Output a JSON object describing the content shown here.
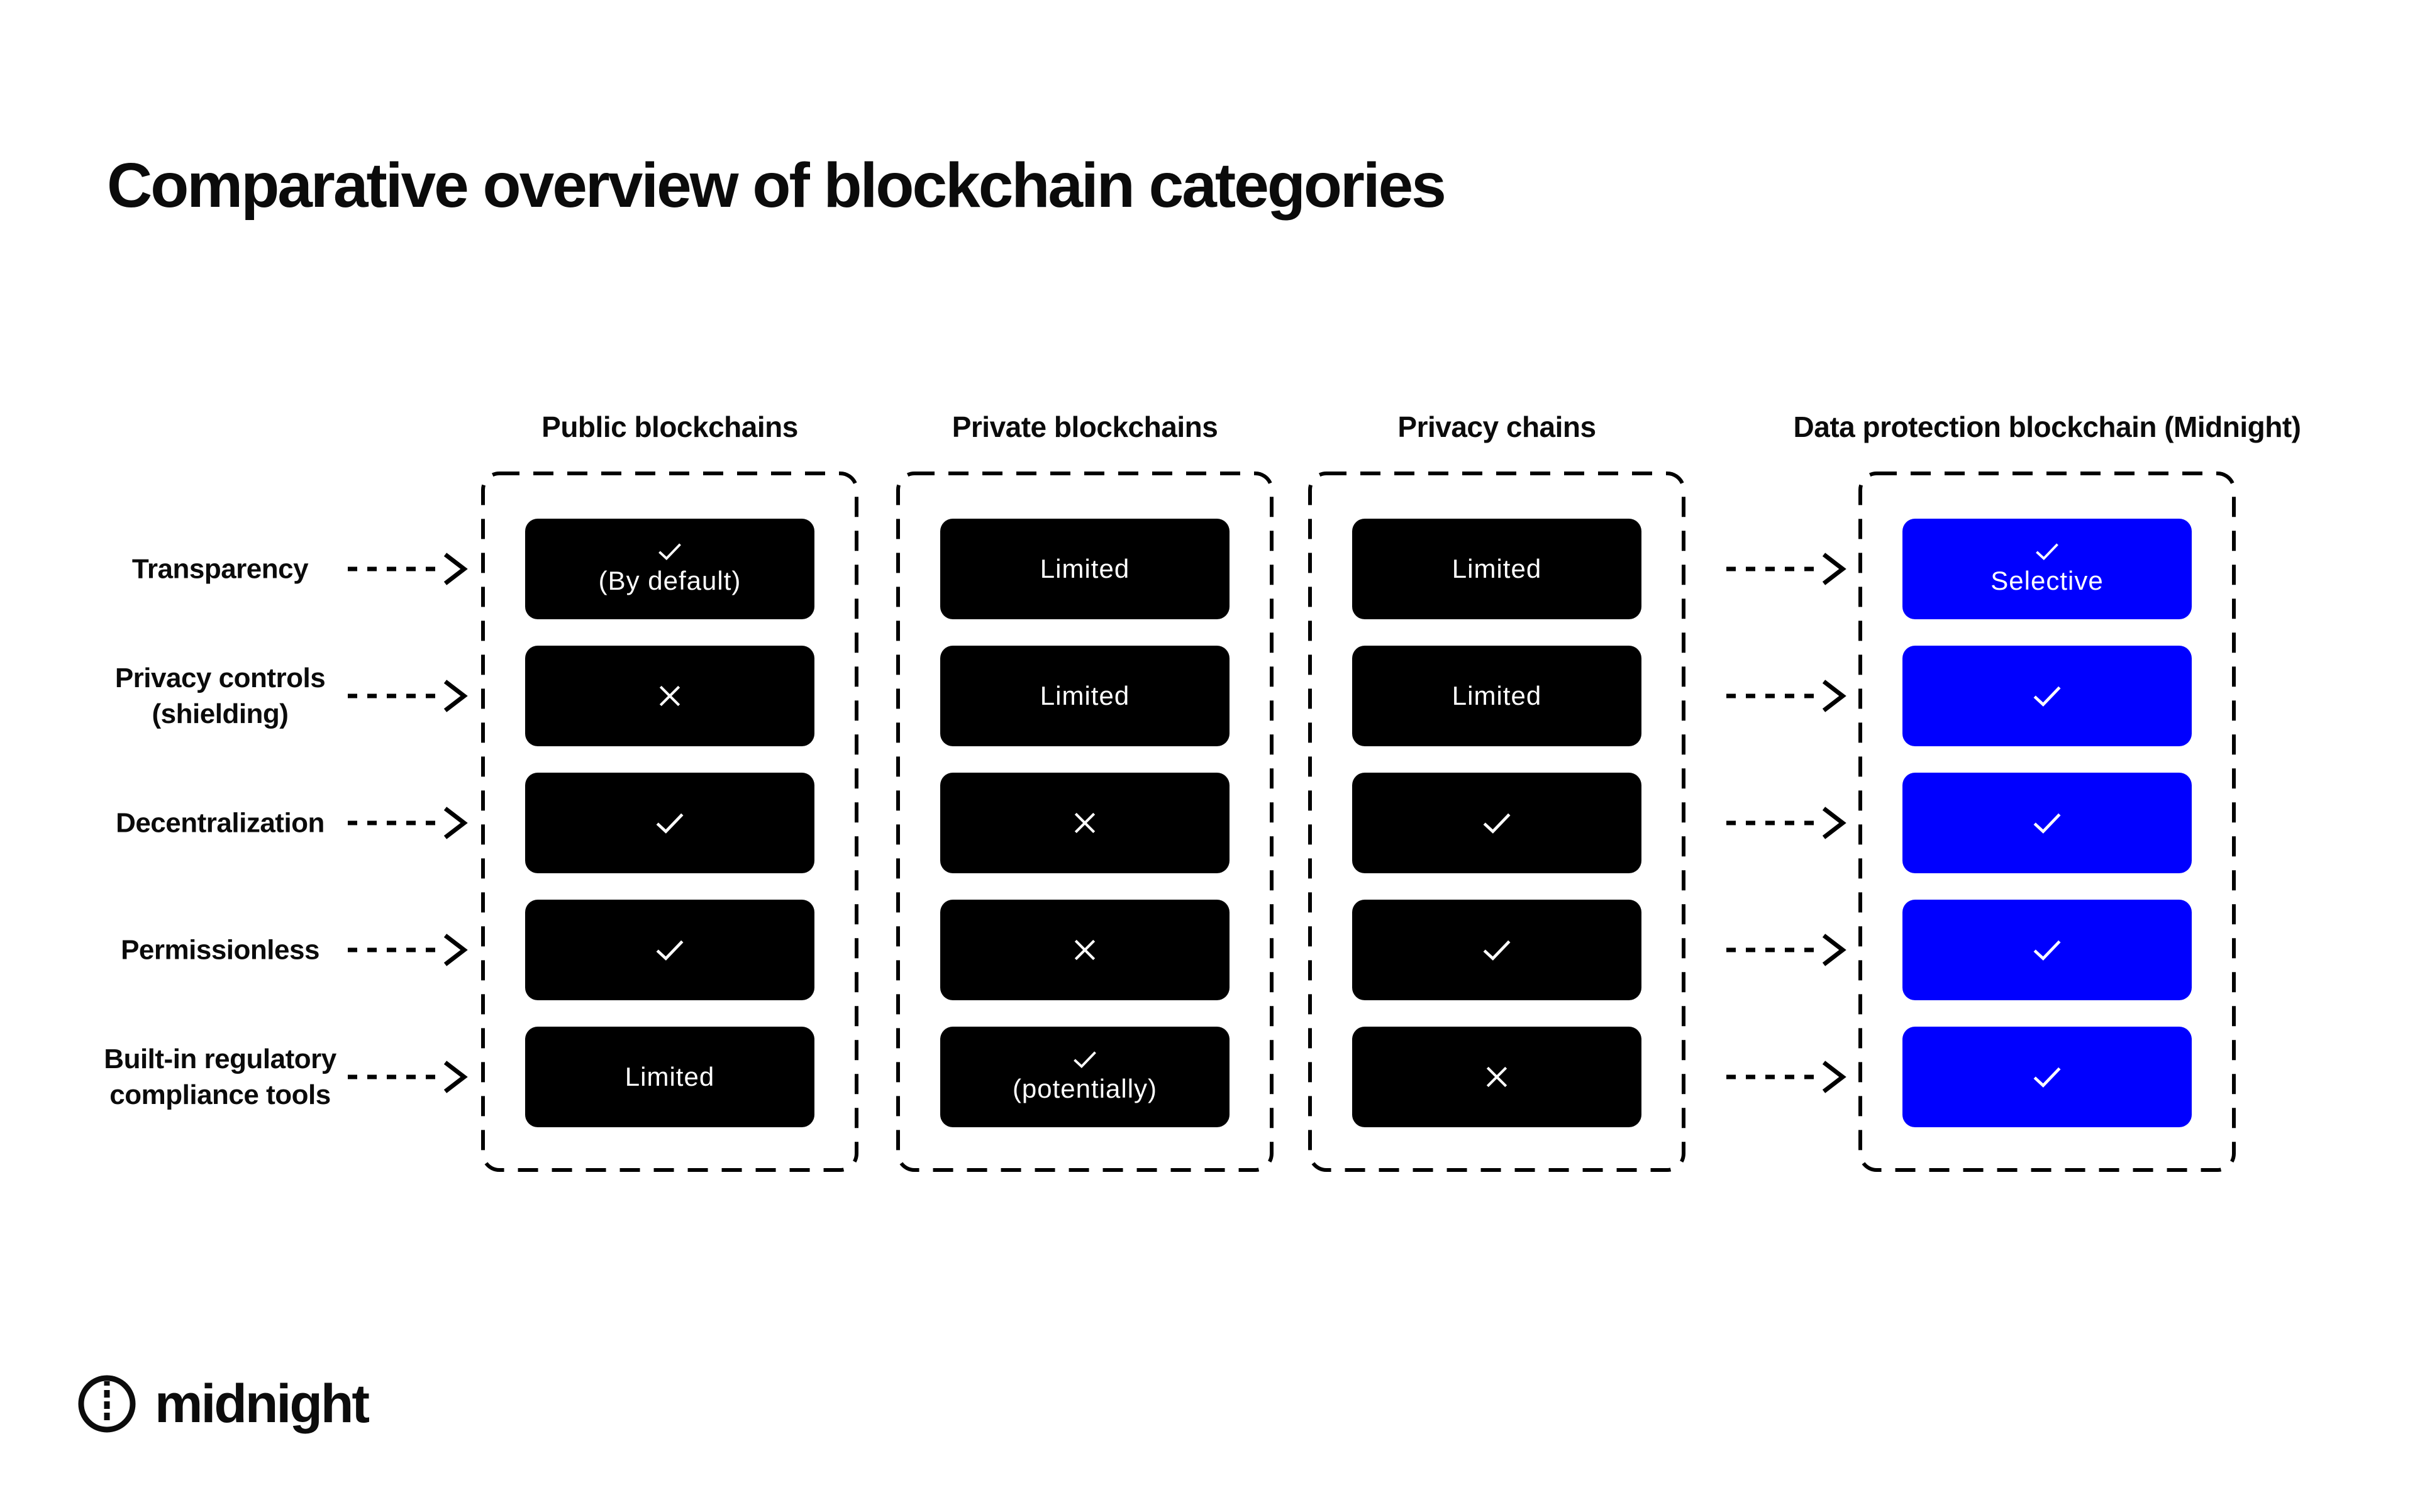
{
  "title": "Comparative overview of blockchain categories",
  "rows": [
    {
      "label": "Transparency"
    },
    {
      "label": "Privacy controls\n(shielding)"
    },
    {
      "label": "Decentralization"
    },
    {
      "label": "Permissionless"
    },
    {
      "label": "Built-in regulatory\ncompliance tools"
    }
  ],
  "columns": [
    {
      "header": "Public blockchains",
      "theme": "black",
      "cells": [
        {
          "mark": "check",
          "label": "(By default)"
        },
        {
          "mark": "cross",
          "label": ""
        },
        {
          "mark": "check",
          "label": ""
        },
        {
          "mark": "check",
          "label": ""
        },
        {
          "mark": "",
          "label": "Limited"
        }
      ]
    },
    {
      "header": "Private blockchains",
      "theme": "black",
      "cells": [
        {
          "mark": "",
          "label": "Limited"
        },
        {
          "mark": "",
          "label": "Limited"
        },
        {
          "mark": "cross",
          "label": ""
        },
        {
          "mark": "cross",
          "label": ""
        },
        {
          "mark": "check",
          "label": "(potentially)"
        }
      ]
    },
    {
      "header": "Privacy chains",
      "theme": "black",
      "cells": [
        {
          "mark": "",
          "label": "Limited"
        },
        {
          "mark": "",
          "label": "Limited"
        },
        {
          "mark": "check",
          "label": ""
        },
        {
          "mark": "check",
          "label": ""
        },
        {
          "mark": "cross",
          "label": ""
        }
      ]
    },
    {
      "header": "Data protection blockchain (Midnight)",
      "theme": "blue",
      "cells": [
        {
          "mark": "check",
          "label": "Selective"
        },
        {
          "mark": "check",
          "label": ""
        },
        {
          "mark": "check",
          "label": ""
        },
        {
          "mark": "check",
          "label": ""
        },
        {
          "mark": "check",
          "label": ""
        }
      ]
    }
  ],
  "colors": {
    "cell_black": "#000000",
    "cell_blue": "#0000ff",
    "ink": "#0b0b0b"
  },
  "logo": {
    "wordmark": "midnight"
  }
}
